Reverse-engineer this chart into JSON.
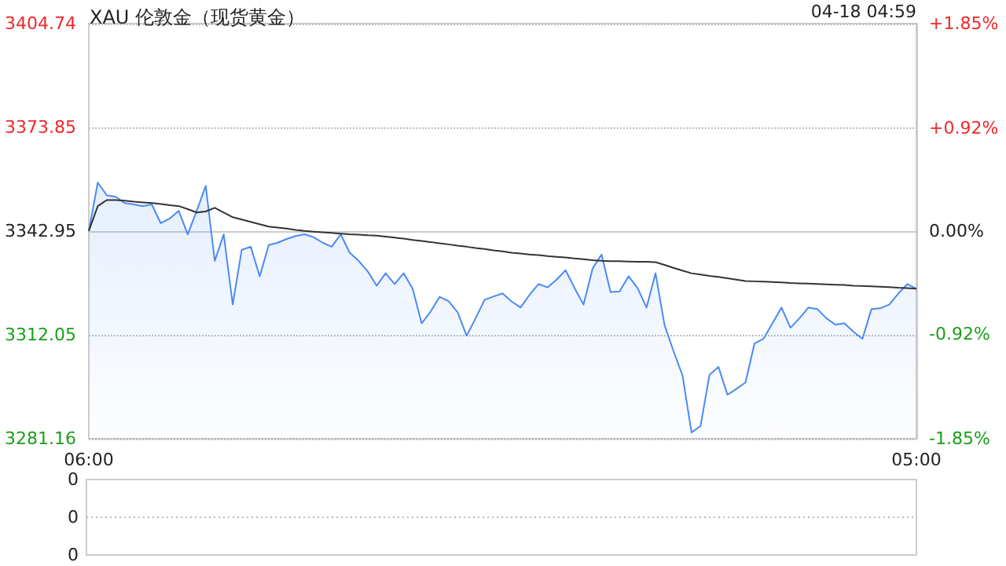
{
  "chart_data": [
    {
      "type": "area",
      "title": "XAU 伦敦金（现货黄金）",
      "annotations": [
        "04-18 04:59"
      ],
      "categories": [
        "06:00",
        null,
        null,
        null,
        null,
        null,
        null,
        null,
        null,
        null,
        null,
        null,
        null,
        null,
        null,
        null,
        null,
        null,
        null,
        null,
        null,
        null,
        null,
        null,
        null,
        null,
        null,
        null,
        null,
        null,
        null,
        null,
        null,
        null,
        null,
        null,
        null,
        null,
        null,
        null,
        null,
        null,
        null,
        null,
        null,
        null,
        null,
        null,
        null,
        null,
        null,
        null,
        null,
        null,
        null,
        null,
        null,
        null,
        null,
        null,
        null,
        null,
        null,
        null,
        null,
        null,
        null,
        null,
        null,
        null,
        null,
        null,
        null,
        null,
        null,
        null,
        null,
        null,
        null,
        null,
        null,
        null,
        null,
        null,
        null,
        null,
        null,
        null,
        null,
        null,
        null,
        null,
        "05:00"
      ],
      "ylim": [
        3281.16,
        3404.74
      ],
      "yticks": [
        3281.16,
        3312.05,
        3342.95,
        3373.85,
        3404.74
      ],
      "y2lim": [
        -1.85,
        1.85
      ],
      "y2ticks": [
        {
          "value": -1.85,
          "label": "-1.85%"
        },
        {
          "value": -0.92,
          "label": "-0.92%"
        },
        {
          "value": 0,
          "label": "0.00%"
        },
        {
          "value": 0.92,
          "label": "+0.92%"
        },
        {
          "value": 1.85,
          "label": "+1.85%"
        }
      ],
      "grid": "y",
      "series": [
        {
          "color": "#4a8af4",
          "values": [
            3343.0,
            3357.4,
            3353.6,
            3353.2,
            3351.3,
            3350.9,
            3350.4,
            3350.9,
            3345.3,
            3346.7,
            3349.0,
            3342.0,
            3349.0,
            3356.4,
            3334.1,
            3342.0,
            3321.1,
            3337.4,
            3338.3,
            3329.5,
            3338.8,
            3339.5,
            3340.6,
            3341.5,
            3342.0,
            3341.1,
            3339.5,
            3338.3,
            3342.0,
            3336.5,
            3334.1,
            3331.0,
            3326.7,
            3330.4,
            3327.2,
            3330.4,
            3325.8,
            3315.5,
            3319.0,
            3323.4,
            3322.1,
            3318.8,
            3311.8,
            3317.0,
            3322.5,
            3323.5,
            3324.4,
            3322.0,
            3320.2,
            3324.0,
            3327.2,
            3326.2,
            3328.5,
            3331.3,
            3326.0,
            3321.1,
            3331.8,
            3336.0,
            3324.8,
            3325.0,
            3329.5,
            3326.0,
            3320.2,
            3330.4,
            3315.0,
            3307.2,
            3300.0,
            3283.0,
            3284.9,
            3300.2,
            3302.5,
            3294.2,
            3296.0,
            3297.9,
            3309.5,
            3310.9,
            3315.5,
            3320.2,
            3314.2,
            3317.0,
            3320.2,
            3319.7,
            3317.0,
            3315.1,
            3315.5,
            3313.0,
            3310.9,
            3319.7,
            3320.0,
            3321.1,
            3324.4,
            3327.2,
            3325.8
          ]
        },
        {
          "type": "line",
          "color": "#333333",
          "values": [
            3343.0,
            3350.4,
            3352.2,
            3352.2,
            3352.0,
            3351.7,
            3351.5,
            3351.3,
            3351.0,
            3350.7,
            3350.4,
            3349.5,
            3348.5,
            3348.8,
            3349.9,
            3348.5,
            3347.1,
            3346.4,
            3345.7,
            3345.0,
            3344.3,
            3344.0,
            3343.7,
            3343.3,
            3343.0,
            3342.8,
            3342.6,
            3342.4,
            3342.2,
            3342.0,
            3341.9,
            3341.7,
            3341.6,
            3341.3,
            3341.0,
            3340.7,
            3340.3,
            3340.0,
            3339.7,
            3339.3,
            3339.0,
            3338.6,
            3338.3,
            3337.9,
            3337.6,
            3337.2,
            3336.9,
            3336.5,
            3336.3,
            3336.0,
            3335.8,
            3335.5,
            3335.3,
            3335.1,
            3334.8,
            3334.6,
            3334.3,
            3334.1,
            3334.0,
            3334.0,
            3333.9,
            3333.8,
            3333.8,
            3333.7,
            3332.9,
            3332.0,
            3331.2,
            3330.4,
            3330.0,
            3329.6,
            3329.3,
            3328.9,
            3328.5,
            3328.1,
            3328.0,
            3327.9,
            3327.8,
            3327.7,
            3327.5,
            3327.4,
            3327.3,
            3327.2,
            3327.1,
            3327.0,
            3326.9,
            3326.7,
            3326.6,
            3326.5,
            3326.4,
            3326.3,
            3326.1,
            3326.0,
            3325.8
          ]
        }
      ]
    },
    {
      "type": "other",
      "annotations": [
        "0",
        "0",
        "0"
      ]
    }
  ]
}
